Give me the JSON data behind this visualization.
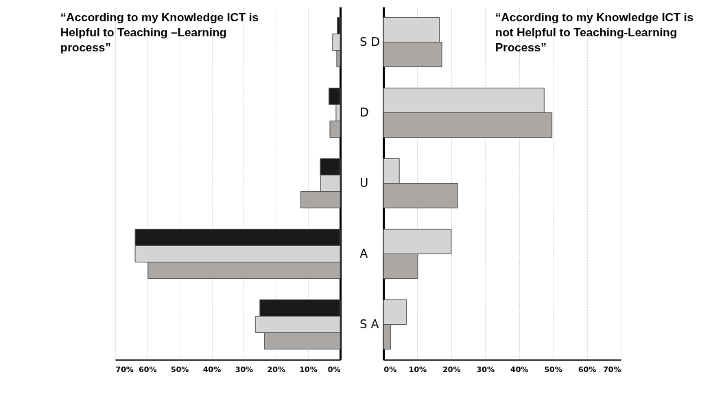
{
  "chart_data": [
    {
      "type": "bar",
      "orientation": "horizontal",
      "title": "“According to my Knowledge ICT is\nHelpful to Teaching –Learning\nprocess”",
      "categories": [
        "S D",
        "D",
        "U",
        "A",
        "S A"
      ],
      "series": [
        {
          "color": "#1a1a1a",
          "values": [
            0.9,
            3.5,
            6.2,
            63.8,
            25.0
          ]
        },
        {
          "color": "#d4d4d4",
          "values": [
            2.4,
            1.3,
            6.1,
            63.8,
            26.4
          ]
        },
        {
          "color": "#aba7a5",
          "values": [
            1.1,
            3.2,
            12.3,
            59.8,
            23.6
          ]
        }
      ],
      "xlim": [
        70,
        0
      ],
      "xticks": [
        {
          "value": 70,
          "label": "70%"
        },
        {
          "value": 60,
          "label": "60%"
        },
        {
          "value": 50,
          "label": "50%"
        },
        {
          "value": 40,
          "label": "40%"
        },
        {
          "value": 30,
          "label": "30%"
        },
        {
          "value": 20,
          "label": "20%"
        },
        {
          "value": 10,
          "label": "10%"
        },
        {
          "value": 0,
          "label": "0%"
        }
      ],
      "grid": "x",
      "legend": false
    },
    {
      "type": "bar",
      "orientation": "horizontal",
      "title": "“According to my Knowledge ICT is\nnot Helpful to Teaching-Learning\nProcess”",
      "categories": [
        "S D",
        "D",
        "U",
        "A",
        "S A"
      ],
      "series": [
        {
          "color": "#d4d4d4",
          "values": [
            16.5,
            47.4,
            4.7,
            20.0,
            6.8
          ]
        },
        {
          "color": "#aba7a5",
          "values": [
            17.2,
            49.7,
            21.9,
            10.1,
            2.1
          ]
        }
      ],
      "xlim": [
        0,
        70
      ],
      "xticks": [
        {
          "value": 0,
          "label": "0%"
        },
        {
          "value": 10,
          "label": "10%"
        },
        {
          "value": 20,
          "label": "20%"
        },
        {
          "value": 30,
          "label": "30%"
        },
        {
          "value": 40,
          "label": "40%"
        },
        {
          "value": 50,
          "label": "50%"
        },
        {
          "value": 60,
          "label": "60%"
        },
        {
          "value": 70,
          "label": "70%"
        }
      ],
      "grid": "x",
      "legend": false,
      "tick_labels": "x"
    }
  ]
}
